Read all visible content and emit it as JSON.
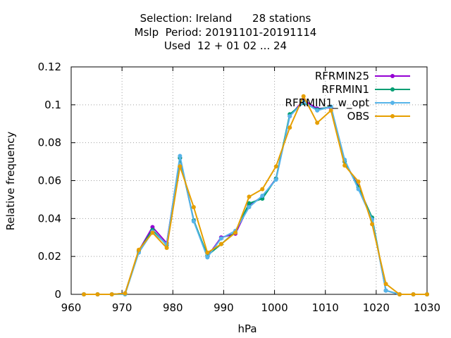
{
  "chart_data": {
    "type": "line",
    "title_lines": [
      "Selection: Ireland      28 stations",
      "Mslp  Period: 20191101-20191114",
      "Used  12 + 01 02 ... 24"
    ],
    "xlabel": "hPa",
    "ylabel": "Relative frequency",
    "xlim": [
      960,
      1030
    ],
    "ylim": [
      0,
      0.12
    ],
    "xticks": [
      960,
      970,
      980,
      990,
      1000,
      1010,
      1020,
      1030
    ],
    "xtick_labels": [
      "960",
      "970",
      "980",
      "990",
      "1000",
      "1010",
      "1020",
      "1030"
    ],
    "yticks": [
      0,
      0.02,
      0.04,
      0.06,
      0.08,
      0.1,
      0.12
    ],
    "ytick_labels": [
      "0",
      "0.02",
      "0.04",
      "0.06",
      "0.08",
      "0.1",
      "0.12"
    ],
    "grid": true,
    "legend_position": "top-right",
    "x": [
      962.5,
      965.2,
      968.0,
      970.6,
      973.3,
      976.0,
      978.8,
      981.4,
      984.1,
      986.8,
      989.5,
      992.3,
      995.0,
      997.6,
      1000.3,
      1003.0,
      1005.7,
      1008.4,
      1011.1,
      1013.8,
      1016.5,
      1019.2,
      1021.9,
      1024.6,
      1027.3,
      1030.0
    ],
    "series": [
      {
        "name": "RFRMIN25",
        "color": "#9400d3",
        "values": [
          0,
          0,
          0,
          0.0005,
          0.023,
          0.0355,
          0.027,
          0.072,
          0.039,
          0.02,
          0.03,
          0.032,
          0.047,
          0.0515,
          0.061,
          0.094,
          0.1025,
          0.098,
          0.0985,
          0.07,
          0.057,
          0.04,
          0.002,
          0,
          0,
          0
        ]
      },
      {
        "name": "RFRMIN1",
        "color": "#009e73",
        "values": [
          0,
          0,
          0,
          0.0005,
          0.023,
          0.034,
          0.026,
          0.072,
          0.039,
          0.0205,
          0.0265,
          0.033,
          0.048,
          0.0505,
          0.061,
          0.095,
          0.101,
          0.0975,
          0.099,
          0.07,
          0.0565,
          0.0405,
          0.002,
          0,
          0,
          0
        ]
      },
      {
        "name": "RFRMIN1_w_opt",
        "color": "#56b4e9",
        "values": [
          0,
          0,
          0,
          0,
          0.022,
          0.033,
          0.0265,
          0.073,
          0.0385,
          0.0195,
          0.0295,
          0.0335,
          0.046,
          0.052,
          0.0605,
          0.094,
          0.1015,
          0.097,
          0.099,
          0.071,
          0.0555,
          0.0395,
          0.002,
          0,
          0,
          0
        ]
      },
      {
        "name": "OBS",
        "color": "#e69f00",
        "values": [
          0,
          0,
          0,
          0.0005,
          0.0235,
          0.0325,
          0.0245,
          0.0675,
          0.046,
          0.022,
          0.0265,
          0.0325,
          0.0515,
          0.0555,
          0.0675,
          0.088,
          0.1045,
          0.0905,
          0.097,
          0.068,
          0.0595,
          0.037,
          0.0055,
          0,
          0,
          0
        ]
      }
    ]
  }
}
